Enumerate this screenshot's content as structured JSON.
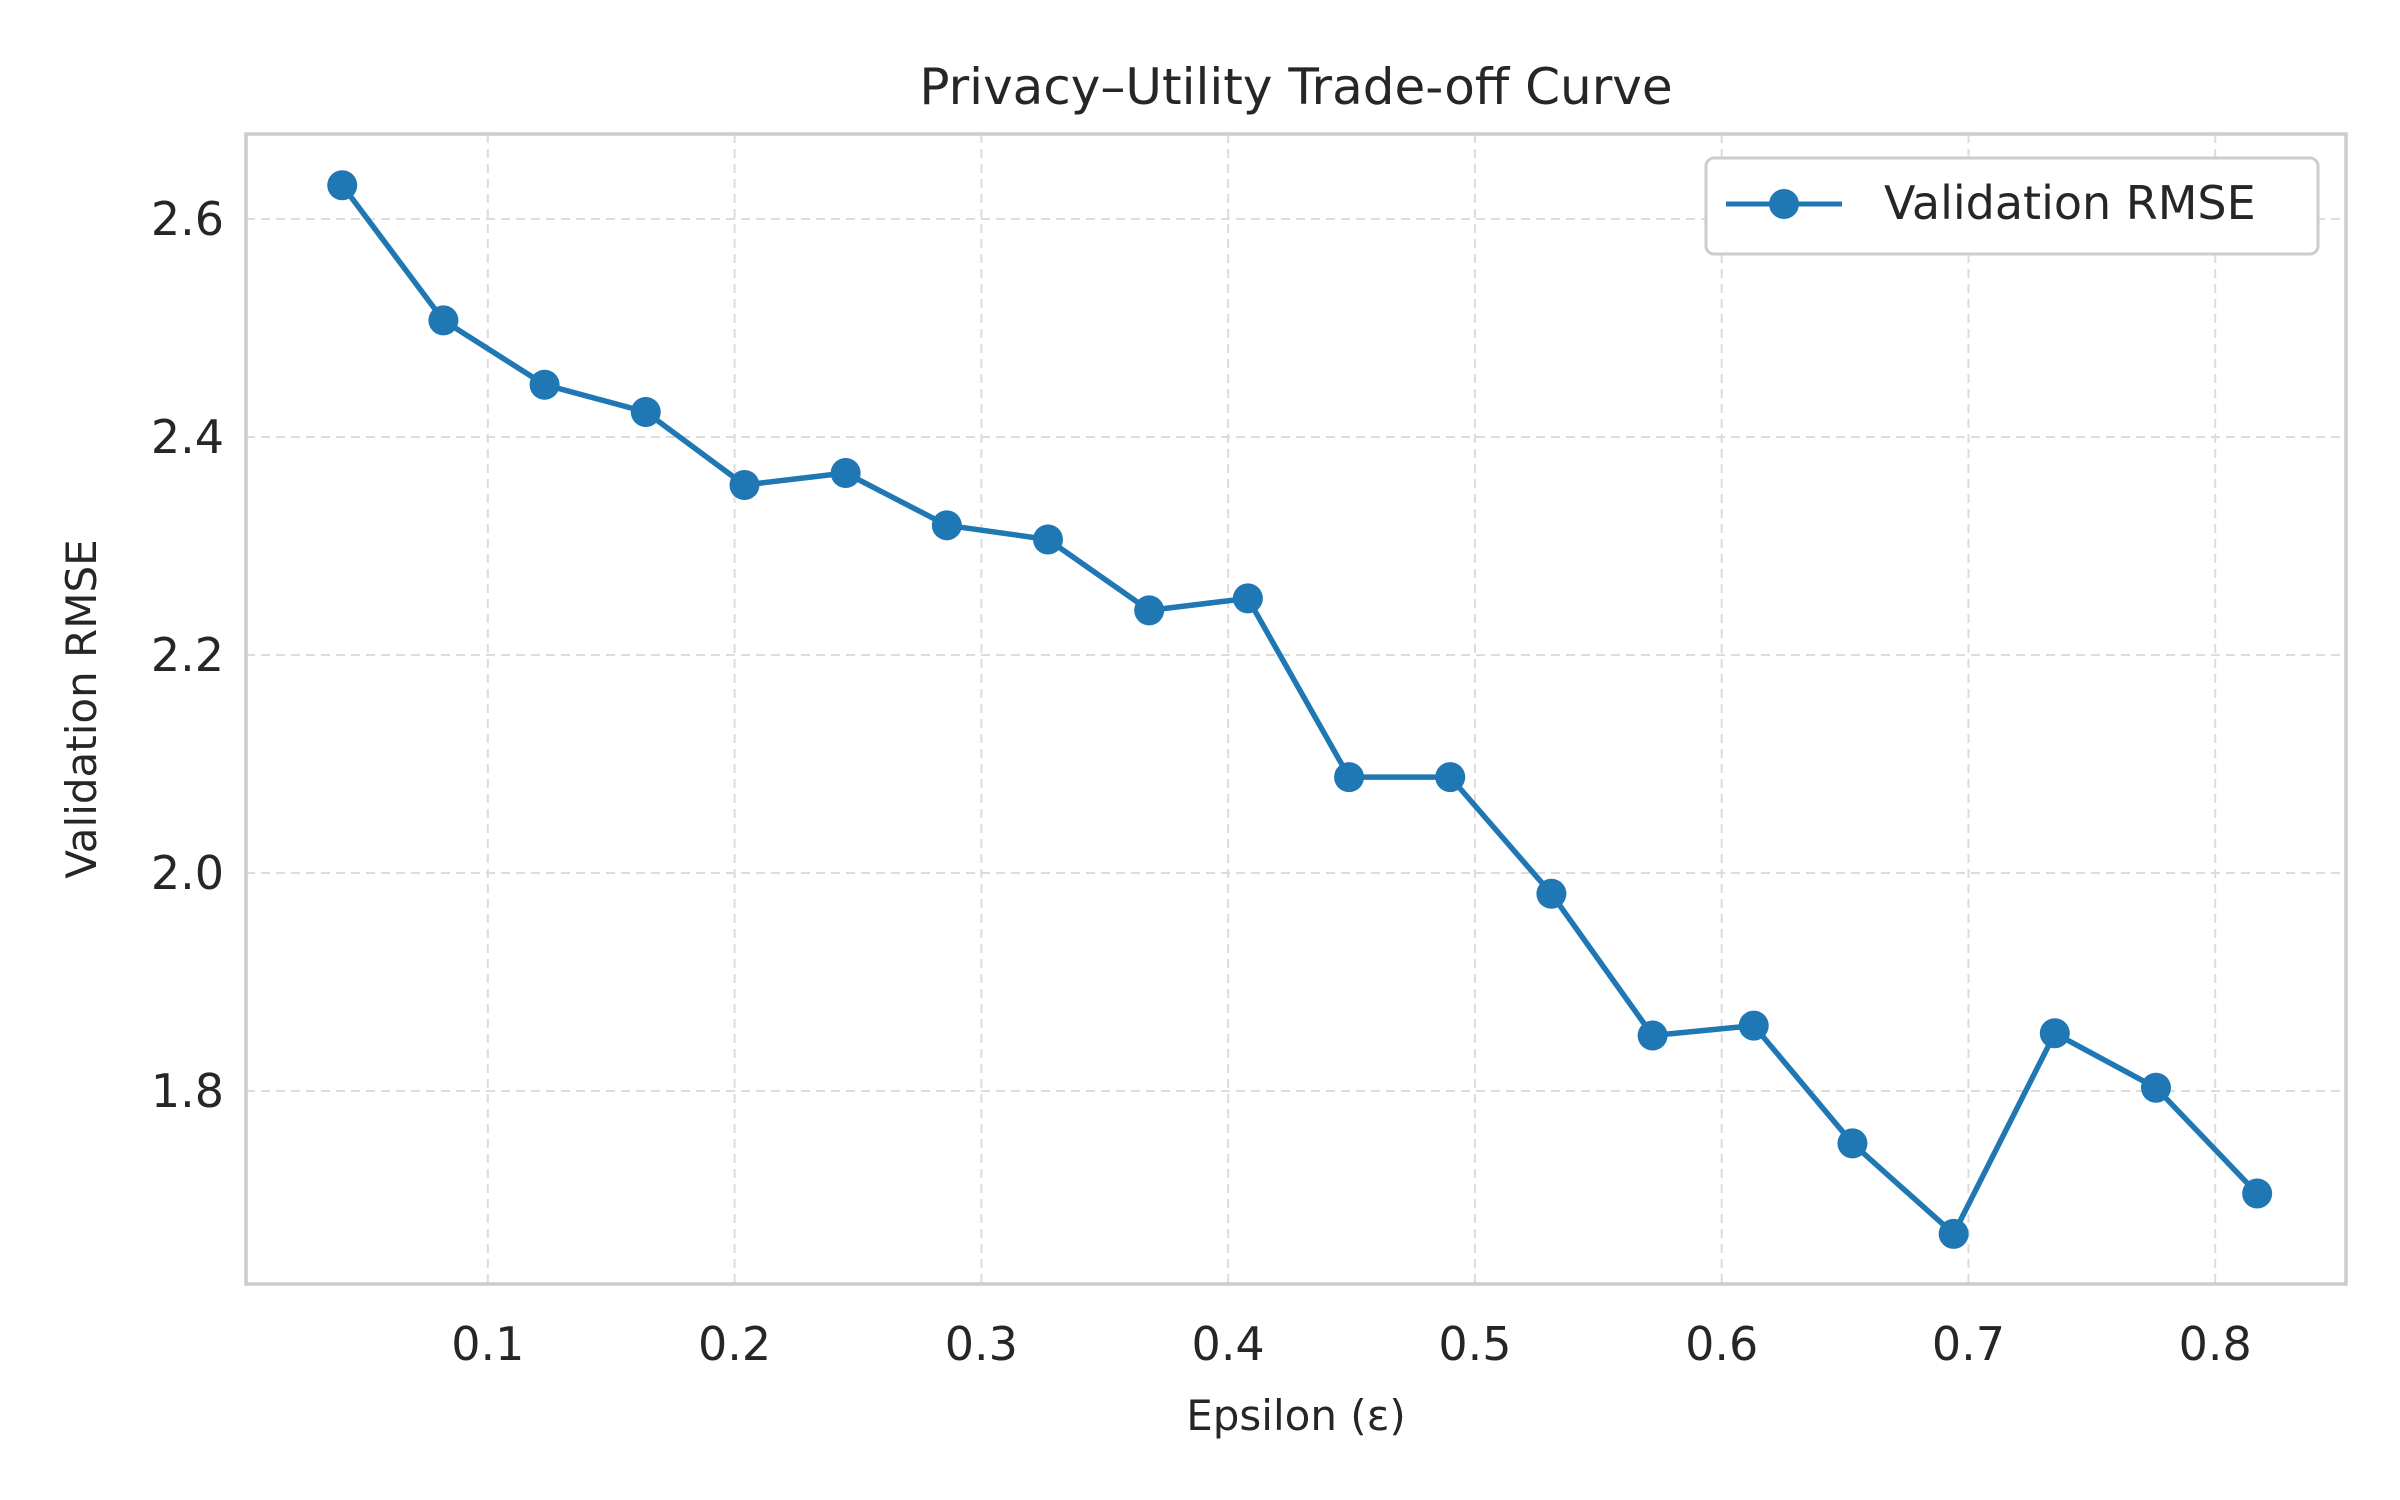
{
  "chart_data": {
    "type": "line",
    "title": "Privacy–Utility Trade-off Curve",
    "xlabel": "Epsilon (ε)",
    "ylabel": "Validation RMSE",
    "xlim": [
      0.002,
      0.853
    ],
    "ylim": [
      1.623,
      2.678
    ],
    "xticks": [
      0.1,
      0.2,
      0.3,
      0.4,
      0.5,
      0.6,
      0.7,
      0.8
    ],
    "xtick_labels": [
      "0.1",
      "0.2",
      "0.3",
      "0.4",
      "0.5",
      "0.6",
      "0.7",
      "0.8"
    ],
    "yticks": [
      1.8,
      2.0,
      2.2,
      2.4,
      2.6
    ],
    "ytick_labels": [
      "1.8",
      "2.0",
      "2.2",
      "2.4",
      "2.6"
    ],
    "grid": true,
    "legend_position": "top-right",
    "series": [
      {
        "name": "Validation RMSE",
        "color": "#1f77b4",
        "marker": "circle",
        "x": [
          0.041,
          0.082,
          0.123,
          0.164,
          0.204,
          0.245,
          0.286,
          0.327,
          0.368,
          0.408,
          0.449,
          0.49,
          0.531,
          0.572,
          0.613,
          0.653,
          0.694,
          0.735,
          0.776,
          0.817
        ],
        "y": [
          2.631,
          2.507,
          2.448,
          2.423,
          2.356,
          2.367,
          2.319,
          2.306,
          2.241,
          2.252,
          2.088,
          2.088,
          1.981,
          1.851,
          1.86,
          1.752,
          1.669,
          1.853,
          1.803,
          1.706
        ]
      }
    ]
  }
}
